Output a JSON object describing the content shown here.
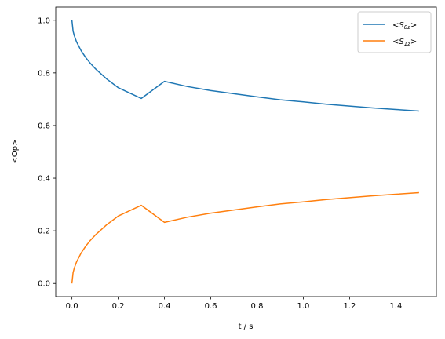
{
  "chart_data": {
    "type": "line",
    "title": "",
    "xlabel": "t / s",
    "ylabel": "<Op>",
    "xlim": [
      -0.07,
      1.575
    ],
    "ylim": [
      -0.05,
      1.05
    ],
    "xticks": [
      0.0,
      0.2,
      0.4,
      0.6,
      0.8,
      1.0,
      1.2,
      1.4
    ],
    "xtick_labels": [
      "0.0",
      "0.2",
      "0.4",
      "0.6",
      "0.8",
      "1.0",
      "1.2",
      "1.4"
    ],
    "yticks": [
      0.0,
      0.2,
      0.4,
      0.6,
      0.8,
      1.0
    ],
    "ytick_labels": [
      "0.0",
      "0.2",
      "0.4",
      "0.6",
      "0.8",
      "1.0"
    ],
    "grid": false,
    "legend_position": "top-right",
    "x": [
      0.0,
      0.005,
      0.01,
      0.02,
      0.04,
      0.06,
      0.08,
      0.1,
      0.15,
      0.2,
      0.3,
      0.4,
      0.5,
      0.6,
      0.7,
      0.8,
      0.9,
      1.0,
      1.1,
      1.2,
      1.3,
      1.4,
      1.5
    ],
    "series": [
      {
        "name_prefix": "<S",
        "name_sub": "0z",
        "name_suffix": ">",
        "color": "#1f77b4",
        "values": [
          1.0,
          0.959,
          0.942,
          0.918,
          0.884,
          0.858,
          0.836,
          0.817,
          0.777,
          0.744,
          0.703,
          0.768,
          0.748,
          0.733,
          0.721,
          0.709,
          0.698,
          0.69,
          0.681,
          0.674,
          0.667,
          0.661,
          0.655
        ]
      },
      {
        "name_prefix": "<S",
        "name_sub": "1z",
        "name_suffix": ">",
        "color": "#ff7f0e",
        "values": [
          0.0,
          0.041,
          0.058,
          0.082,
          0.116,
          0.142,
          0.164,
          0.183,
          0.223,
          0.256,
          0.297,
          0.232,
          0.252,
          0.267,
          0.279,
          0.291,
          0.302,
          0.31,
          0.319,
          0.326,
          0.333,
          0.339,
          0.345
        ]
      }
    ]
  }
}
